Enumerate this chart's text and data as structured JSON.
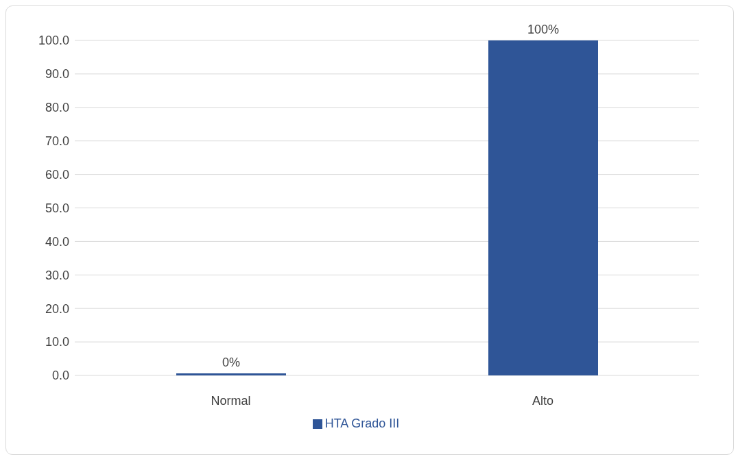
{
  "chart_data": {
    "type": "bar",
    "categories": [
      "Normal",
      "Alto"
    ],
    "series": [
      {
        "name": "HTA Grado III",
        "color": "#2f5597",
        "values": [
          0,
          100
        ],
        "value_labels": [
          "0%",
          "100%"
        ]
      }
    ],
    "ylim": [
      0,
      100
    ],
    "yticks": [
      {
        "value": 0,
        "label": "0.0"
      },
      {
        "value": 10,
        "label": "10.0"
      },
      {
        "value": 20,
        "label": "20.0"
      },
      {
        "value": 30,
        "label": "30.0"
      },
      {
        "value": 40,
        "label": "40.0"
      },
      {
        "value": 50,
        "label": "50.0"
      },
      {
        "value": 60,
        "label": "60.0"
      },
      {
        "value": 70,
        "label": "70.0"
      },
      {
        "value": 80,
        "label": "80.0"
      },
      {
        "value": 90,
        "label": "90.0"
      },
      {
        "value": 100,
        "label": "100.0"
      }
    ],
    "grid": "y",
    "legend": "bottom"
  }
}
